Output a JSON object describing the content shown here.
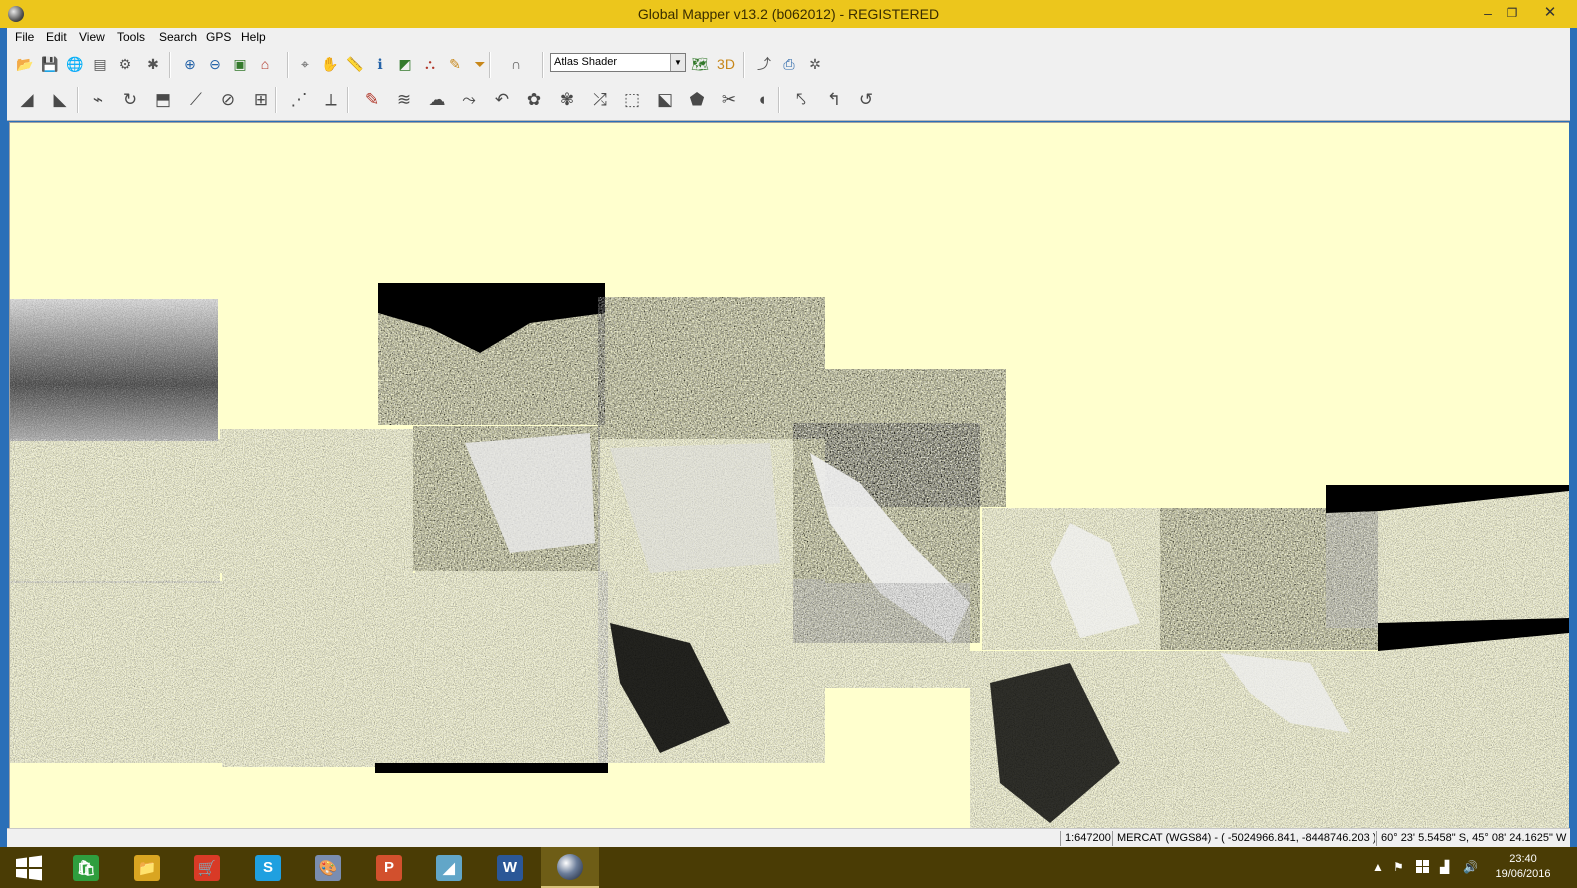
{
  "window": {
    "title": "Global Mapper v13.2 (b062012) - REGISTERED",
    "minimize": "–",
    "restore": "❐",
    "close": "✕"
  },
  "menu": [
    "File",
    "Edit",
    "View",
    "Tools",
    "Search",
    "GPS",
    "Help"
  ],
  "toolbar": {
    "shader_selected": "Atlas Shader",
    "shader_arrow": "▼",
    "row1": [
      {
        "name": "open-data-file-button",
        "glyph": "📂"
      },
      {
        "name": "save-workspace-button",
        "glyph": "💾"
      },
      {
        "name": "download-online-data-button",
        "glyph": "🌐"
      },
      {
        "name": "control-center-button",
        "glyph": "▤"
      },
      {
        "name": "config-button",
        "glyph": "⚙"
      },
      {
        "name": "tools-button",
        "glyph": "✱"
      },
      {
        "name": "zoom-in-button",
        "glyph": "⊕"
      },
      {
        "name": "zoom-out-button",
        "glyph": "⊖"
      },
      {
        "name": "zoom-to-layer-button",
        "glyph": "▣"
      },
      {
        "name": "home-button",
        "glyph": "⌂"
      },
      {
        "name": "info-tool-button",
        "glyph": "⌖"
      },
      {
        "name": "pan-tool-button",
        "glyph": "✋"
      },
      {
        "name": "measure-tool-button",
        "glyph": "📏"
      },
      {
        "name": "feature-info-button",
        "glyph": "ℹ"
      },
      {
        "name": "view-shed-button",
        "glyph": "◩"
      },
      {
        "name": "path-profile-button",
        "glyph": "⛬"
      },
      {
        "name": "digitizer-button",
        "glyph": "✎"
      },
      {
        "name": "filter-button",
        "glyph": "⏷"
      },
      {
        "name": "lock-button",
        "glyph": "∩"
      },
      {
        "name": "shader-options-button",
        "glyph": "🗺"
      },
      {
        "name": "3d-view-button",
        "glyph": "3D"
      },
      {
        "name": "export-button",
        "glyph": "⤴"
      },
      {
        "name": "print-button",
        "glyph": "⎙"
      },
      {
        "name": "gps-button",
        "glyph": "✲"
      }
    ],
    "row2": [
      {
        "name": "digitize-area-button",
        "glyph": "◢"
      },
      {
        "name": "digitize-line-button",
        "glyph": "◣"
      },
      {
        "name": "edit-vertex-button",
        "glyph": "⌁"
      },
      {
        "name": "rotate-feature-button",
        "glyph": "↻"
      },
      {
        "name": "move-feature-button",
        "glyph": "⬒"
      },
      {
        "name": "split-line-button",
        "glyph": "⟋"
      },
      {
        "name": "combine-areas-button",
        "glyph": "⊘"
      },
      {
        "name": "grid-tool-button",
        "glyph": "⊞"
      },
      {
        "name": "add-vertex-button",
        "glyph": "⋰"
      },
      {
        "name": "delete-vertex-button",
        "glyph": "⟂"
      },
      {
        "name": "pencil-tool-button",
        "glyph": "✎"
      },
      {
        "name": "smooth-line-button",
        "glyph": "≋"
      },
      {
        "name": "area-from-lines-button",
        "glyph": "☁"
      },
      {
        "name": "extend-line-button",
        "glyph": "⤳"
      },
      {
        "name": "trim-line-button",
        "glyph": "↶"
      },
      {
        "name": "buffer-area-button",
        "glyph": "✿"
      },
      {
        "name": "crop-area-button",
        "glyph": "✾"
      },
      {
        "name": "connect-lines-button",
        "glyph": "⤮"
      },
      {
        "name": "union-areas-button",
        "glyph": "⬚"
      },
      {
        "name": "intersect-areas-button",
        "glyph": "⬕"
      },
      {
        "name": "fill-area-button",
        "glyph": "⬟"
      },
      {
        "name": "cut-area-button",
        "glyph": "✂"
      },
      {
        "name": "simplify-button",
        "glyph": "◖"
      },
      {
        "name": "snap-button",
        "glyph": "⤣"
      },
      {
        "name": "undo-edit-button",
        "glyph": "↰"
      },
      {
        "name": "redo-edit-button",
        "glyph": "↺"
      }
    ]
  },
  "status": {
    "scale": "1:647200",
    "projection": "MERCAT (WGS84) - ( -5024966.841, -8448746.203 )",
    "latlon": "60° 23' 5.5458\" S, 45° 08' 24.1625\" W"
  },
  "taskbar": {
    "apps": [
      {
        "name": "store-icon",
        "glyph": "🛍",
        "color": "#2f9e3e",
        "active": false
      },
      {
        "name": "file-explorer-icon",
        "glyph": "📁",
        "color": "#d9a521",
        "active": false
      },
      {
        "name": "shopping-cart-icon",
        "glyph": "🛒",
        "color": "#d93a26",
        "active": false
      },
      {
        "name": "skype-icon",
        "glyph": "S",
        "color": "#1fa0e0",
        "active": false
      },
      {
        "name": "paint-icon",
        "glyph": "🎨",
        "color": "#7a8db0",
        "active": false
      },
      {
        "name": "powerpoint-icon",
        "glyph": "P",
        "color": "#d2502d",
        "active": false
      },
      {
        "name": "notebook-icon",
        "glyph": "◢",
        "color": "#62a6c8",
        "active": false
      },
      {
        "name": "word-icon",
        "glyph": "W",
        "color": "#2b5797",
        "active": false
      },
      {
        "name": "global-mapper-icon",
        "glyph": "",
        "color": "#333333",
        "active": true
      }
    ],
    "tray": {
      "up_arrow": "▲",
      "flag": "⚑",
      "network": "▟",
      "volume": "🔊"
    },
    "clock_time": "23:40",
    "clock_date": "19/06/2016"
  },
  "colors": {
    "titlebar": "#ecc61c",
    "map_background": "#ffffce",
    "taskbar": "#4a3c05",
    "accent_blue": "#2a6fb8"
  }
}
